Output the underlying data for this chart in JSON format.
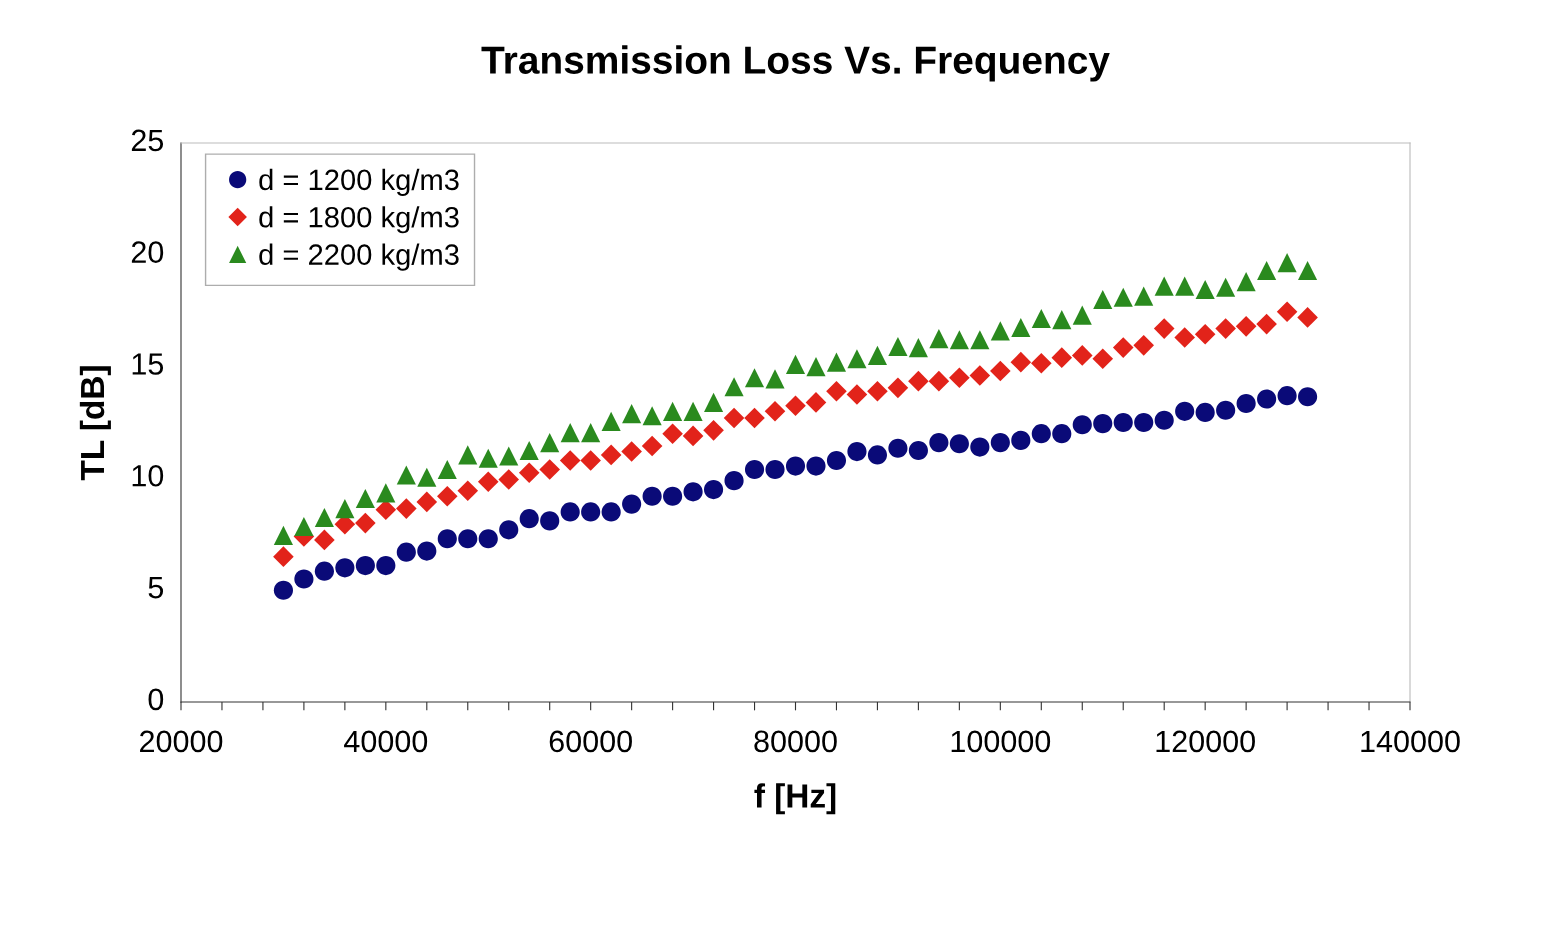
{
  "chart_data": {
    "type": "scatter",
    "title": "Transmission Loss Vs. Frequency",
    "xlabel": "f [Hz]",
    "ylabel": "TL [dB]",
    "x": [
      30000,
      32000,
      34000,
      36000,
      38000,
      40000,
      42000,
      44000,
      46000,
      48000,
      50000,
      52000,
      54000,
      56000,
      58000,
      60000,
      62000,
      64000,
      66000,
      68000,
      70000,
      72000,
      74000,
      76000,
      78000,
      80000,
      82000,
      84000,
      86000,
      88000,
      90000,
      92000,
      94000,
      96000,
      98000,
      100000,
      102000,
      104000,
      106000,
      108000,
      110000,
      112000,
      114000,
      116000,
      118000,
      120000,
      122000,
      124000,
      126000,
      128000,
      130000
    ],
    "series": [
      {
        "name": "d = 1200 kg/m3",
        "color": "#0a0a78",
        "marker": "circle",
        "values": [
          5.0,
          5.5,
          5.85,
          6.0,
          6.1,
          6.1,
          6.7,
          6.75,
          7.3,
          7.3,
          7.3,
          7.7,
          8.2,
          8.1,
          8.5,
          8.5,
          8.5,
          8.85,
          9.2,
          9.2,
          9.4,
          9.5,
          9.9,
          10.4,
          10.4,
          10.55,
          10.55,
          10.8,
          11.2,
          11.05,
          11.35,
          11.25,
          11.6,
          11.55,
          11.4,
          11.6,
          11.7,
          12.0,
          12.0,
          12.4,
          12.45,
          12.5,
          12.5,
          12.6,
          13.0,
          12.95,
          13.05,
          13.35,
          13.55,
          13.7,
          13.65
        ]
      },
      {
        "name": "d = 1800 kg/m3",
        "color": "#e2231a",
        "marker": "diamond",
        "values": [
          6.5,
          7.4,
          7.25,
          7.95,
          8.0,
          8.6,
          8.65,
          8.95,
          9.2,
          9.45,
          9.85,
          9.95,
          10.25,
          10.4,
          10.8,
          10.8,
          11.05,
          11.2,
          11.45,
          12.0,
          11.9,
          12.15,
          12.7,
          12.7,
          13.0,
          13.25,
          13.4,
          13.9,
          13.75,
          13.9,
          14.05,
          14.35,
          14.35,
          14.5,
          14.6,
          14.8,
          15.2,
          15.15,
          15.4,
          15.5,
          15.35,
          15.85,
          15.95,
          16.7,
          16.3,
          16.45,
          16.7,
          16.8,
          16.9,
          17.45,
          17.2
        ]
      },
      {
        "name": "d = 2200 kg/m3",
        "color": "#2a8a1e",
        "marker": "triangle",
        "values": [
          7.45,
          7.85,
          8.25,
          8.65,
          9.1,
          9.35,
          10.15,
          10.05,
          10.4,
          11.05,
          10.9,
          11.0,
          11.25,
          11.6,
          12.05,
          12.05,
          12.55,
          12.9,
          12.8,
          13.0,
          13.0,
          13.4,
          14.1,
          14.5,
          14.45,
          15.1,
          15.0,
          15.2,
          15.35,
          15.5,
          15.9,
          15.85,
          16.25,
          16.2,
          16.2,
          16.6,
          16.75,
          17.15,
          17.1,
          17.3,
          18.0,
          18.1,
          18.15,
          18.6,
          18.6,
          18.45,
          18.55,
          18.8,
          19.3,
          19.65,
          19.3
        ]
      }
    ],
    "xlim": [
      20000,
      140000
    ],
    "xticks": [
      20000,
      {
        "value": 24000,
        "label": null
      },
      {
        "value": 28000,
        "label": null
      },
      {
        "value": 32000,
        "label": null
      },
      {
        "value": 36000,
        "label": null
      },
      40000,
      {
        "value": 44000,
        "label": null
      },
      {
        "value": 48000,
        "label": null
      },
      {
        "value": 52000,
        "label": null
      },
      {
        "value": 56000,
        "label": null
      },
      60000,
      {
        "value": 64000,
        "label": null
      },
      {
        "value": 68000,
        "label": null
      },
      {
        "value": 72000,
        "label": null
      },
      {
        "value": 76000,
        "label": null
      },
      80000,
      {
        "value": 84000,
        "label": null
      },
      {
        "value": 88000,
        "label": null
      },
      {
        "value": 92000,
        "label": null
      },
      {
        "value": 96000,
        "label": null
      },
      100000,
      {
        "value": 104000,
        "label": null
      },
      {
        "value": 108000,
        "label": null
      },
      {
        "value": 112000,
        "label": null
      },
      {
        "value": 116000,
        "label": null
      },
      120000,
      {
        "value": 124000,
        "label": null
      },
      {
        "value": 128000,
        "label": null
      },
      {
        "value": 132000,
        "label": null
      },
      {
        "value": 136000,
        "label": null
      },
      140000
    ],
    "ylim": [
      0,
      25
    ],
    "yticks": [
      0,
      5,
      10,
      15,
      20,
      25
    ],
    "legend": "top left"
  }
}
